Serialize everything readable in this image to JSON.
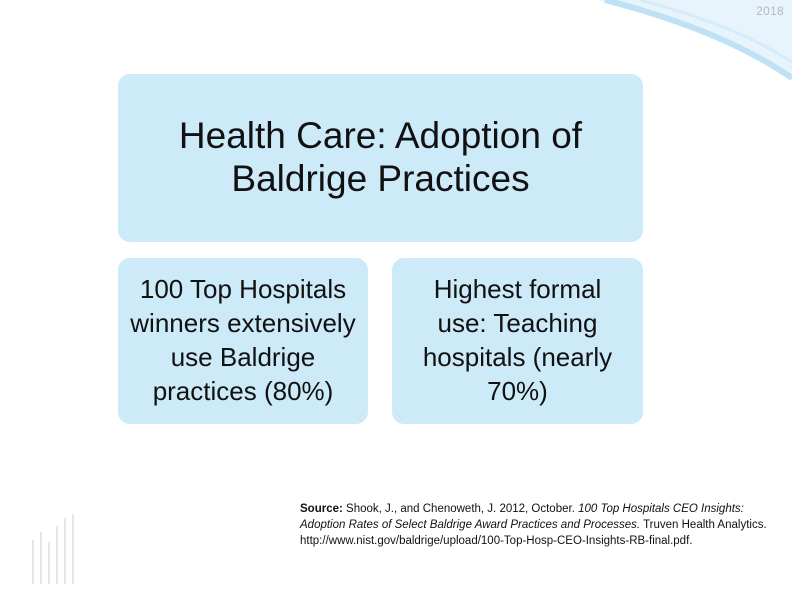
{
  "year": "2018",
  "colors": {
    "panel_fill": "#cdeaf9",
    "swoosh": "#bfe1f5",
    "text": "#111111",
    "year_text": "#b8b8b8"
  },
  "title": "Health Care: Adoption of Baldrige Practices",
  "left_box": "100 Top Hospitals winners extensively use Baldrige practices (80%)",
  "right_box": "Highest formal use: Teaching hospitals (nearly 70%)",
  "source": {
    "label": "Source:",
    "authors": " Shook, J., and Chenoweth, J. 2012, October. ",
    "title": "100 Top Hospitals CEO Insights: Adoption Rates of Select Baldrige Award Practices and Processes.",
    "publisher": " Truven Health Analytics. http://www.nist.gov/baldrige/upload/100-Top-Hosp-CEO-Insights-RB-final.pdf."
  },
  "icons": [
    "corner-swoosh-icon",
    "vertical-bars-icon"
  ]
}
